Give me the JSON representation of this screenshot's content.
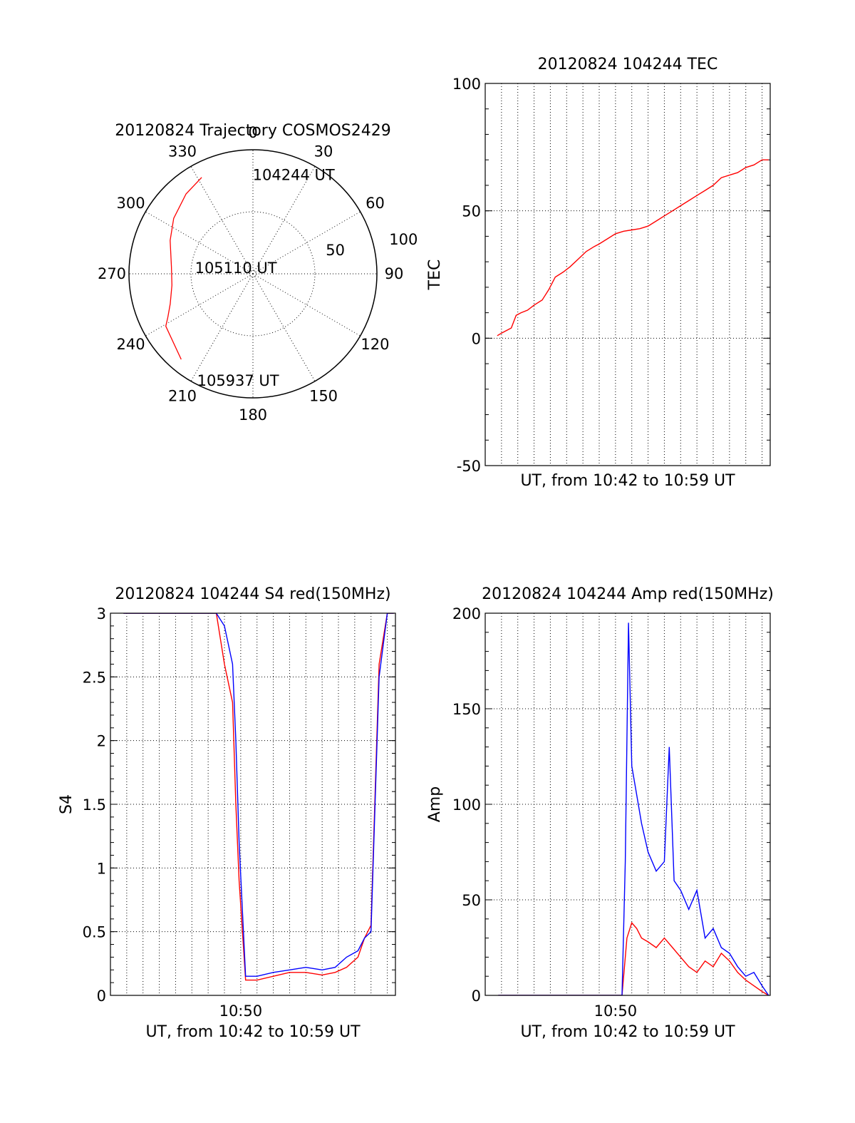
{
  "chart_data": [
    {
      "type": "polar",
      "title": "20120824 Trajectory COSMOS2429",
      "angle_labels": [
        "0",
        "30",
        "60",
        "90",
        "120",
        "150",
        "180",
        "210",
        "240",
        "270",
        "300",
        "330"
      ],
      "ring_labels": [
        "50",
        "100"
      ],
      "rlim": [
        0,
        100
      ],
      "series": [
        {
          "color": "#ff0000",
          "azimuth_deg": [
            332,
            320,
            305,
            292,
            275,
            262,
            250,
            243,
            239,
            220
          ],
          "radius": [
            88,
            84,
            78,
            72,
            66,
            66,
            71,
            77,
            82,
            90
          ]
        }
      ],
      "annotations": [
        {
          "text": "104244 UT",
          "azimuth_deg": 12,
          "radius": 82
        },
        {
          "text": "105110 UT",
          "azimuth_deg": 280,
          "radius": 30
        },
        {
          "text": "105937 UT",
          "azimuth_deg": 198,
          "radius": 90
        }
      ]
    },
    {
      "type": "line",
      "title": "20120824 104244 TEC",
      "xlabel": "UT, from 10:42 to 10:59 UT",
      "ylabel": "TEC",
      "xlim_min": [
        42.0,
        59.5
      ],
      "ylim": [
        -50,
        100
      ],
      "yticks": [
        "100",
        "50",
        "0",
        "-50"
      ],
      "xgrid_min": [
        43,
        44,
        45,
        46,
        47,
        48,
        49,
        50,
        51,
        52,
        53,
        54,
        55,
        56,
        57,
        58,
        59
      ],
      "series": [
        {
          "color": "#ff0000",
          "x": [
            42.74,
            43.0,
            43.3,
            43.6,
            43.9,
            44.2,
            44.6,
            45.0,
            45.5,
            45.9,
            46.3,
            46.8,
            47.2,
            47.7,
            48.2,
            48.7,
            49.0,
            49.5,
            50.0,
            50.5,
            51.0,
            51.5,
            52.0,
            52.5,
            53.0,
            53.5,
            54.0,
            54.5,
            55.0,
            55.5,
            56.0,
            56.5,
            57.0,
            57.5,
            58.0,
            58.5,
            59.0,
            59.4
          ],
          "y": [
            1,
            2,
            3,
            4,
            9,
            10,
            11,
            13,
            15,
            19,
            24,
            26,
            28,
            31,
            34,
            36,
            37,
            39,
            41,
            42,
            42.5,
            43,
            44,
            46,
            48,
            50,
            52,
            54,
            56,
            58,
            60,
            63,
            64,
            65,
            67,
            68,
            70,
            70
          ]
        }
      ]
    },
    {
      "type": "line",
      "title": "20120824 104244 S4 red(150MHz)",
      "xlabel": "UT, from 10:42 to 10:59 UT",
      "ylabel": "S4",
      "xlim_min": [
        42.0,
        59.5
      ],
      "ylim": [
        0,
        3
      ],
      "yticks": [
        "3",
        "2.5",
        "2",
        "1.5",
        "1",
        "0.5",
        "0"
      ],
      "xticks": [
        "10:50"
      ],
      "xgrid_min": [
        43,
        44,
        45,
        46,
        47,
        48,
        49,
        50,
        51,
        52,
        53,
        54,
        55,
        56,
        57,
        58,
        59
      ],
      "series": [
        {
          "color": "#ff0000",
          "x": [
            42.8,
            43.5,
            44.5,
            45.5,
            46.5,
            47.5,
            48.5,
            49.0,
            49.5,
            49.7,
            49.9,
            50.3,
            51.0,
            52.0,
            53.0,
            54.0,
            55.0,
            55.8,
            56.5,
            57.2,
            57.6,
            58.0,
            58.5,
            59.0,
            59.4
          ],
          "y": [
            3,
            3,
            3,
            3,
            3,
            3,
            3,
            2.6,
            2.3,
            1.5,
            0.9,
            0.12,
            0.12,
            0.15,
            0.18,
            0.18,
            0.16,
            0.18,
            0.22,
            0.3,
            0.45,
            0.55,
            2.6,
            3,
            3
          ]
        },
        {
          "color": "#0000ff",
          "x": [
            42.8,
            43.5,
            44.5,
            45.5,
            46.5,
            47.5,
            48.5,
            49.0,
            49.5,
            49.7,
            49.9,
            50.3,
            51.0,
            52.0,
            53.0,
            54.0,
            55.0,
            55.8,
            56.5,
            57.2,
            57.6,
            58.0,
            58.5,
            59.0,
            59.4
          ],
          "y": [
            3,
            3,
            3,
            3,
            3,
            3,
            3,
            2.9,
            2.6,
            2.0,
            1.2,
            0.15,
            0.15,
            0.18,
            0.2,
            0.22,
            0.2,
            0.22,
            0.3,
            0.35,
            0.45,
            0.5,
            2.5,
            3,
            3
          ]
        }
      ]
    },
    {
      "type": "line",
      "title": "20120824 104244 Amp red(150MHz)",
      "xlabel": "UT, from 10:42 to 10:59 UT",
      "ylabel": "Amp",
      "xlim_min": [
        42.0,
        59.5
      ],
      "ylim": [
        0,
        200
      ],
      "yticks": [
        "200",
        "150",
        "100",
        "50",
        "0"
      ],
      "xticks": [
        "10:50"
      ],
      "xgrid_min": [
        43,
        44,
        45,
        46,
        47,
        48,
        49,
        50,
        51,
        52,
        53,
        54,
        55,
        56,
        57,
        58,
        59
      ],
      "series": [
        {
          "color": "#ff0000",
          "x": [
            42.8,
            45.0,
            48.0,
            50.4,
            50.7,
            51.0,
            51.3,
            51.6,
            52.0,
            52.5,
            53.0,
            53.5,
            54.0,
            54.5,
            55.0,
            55.5,
            56.0,
            56.5,
            57.0,
            57.5,
            58.0,
            58.5,
            59.0,
            59.4
          ],
          "y": [
            0,
            0,
            0,
            0,
            30,
            38,
            35,
            30,
            28,
            25,
            30,
            25,
            20,
            15,
            12,
            18,
            15,
            22,
            18,
            12,
            8,
            5,
            2,
            0
          ]
        },
        {
          "color": "#0000ff",
          "x": [
            42.8,
            45.0,
            48.0,
            50.4,
            50.6,
            50.8,
            51.0,
            51.3,
            51.6,
            52.0,
            52.5,
            53.0,
            53.3,
            53.6,
            54.0,
            54.5,
            55.0,
            55.5,
            56.0,
            56.5,
            57.0,
            57.5,
            58.0,
            58.5,
            59.0,
            59.4
          ],
          "y": [
            0,
            0,
            0,
            0,
            70,
            195,
            120,
            105,
            90,
            75,
            65,
            70,
            130,
            60,
            55,
            45,
            55,
            30,
            35,
            25,
            22,
            15,
            10,
            12,
            5,
            0
          ]
        }
      ]
    }
  ]
}
